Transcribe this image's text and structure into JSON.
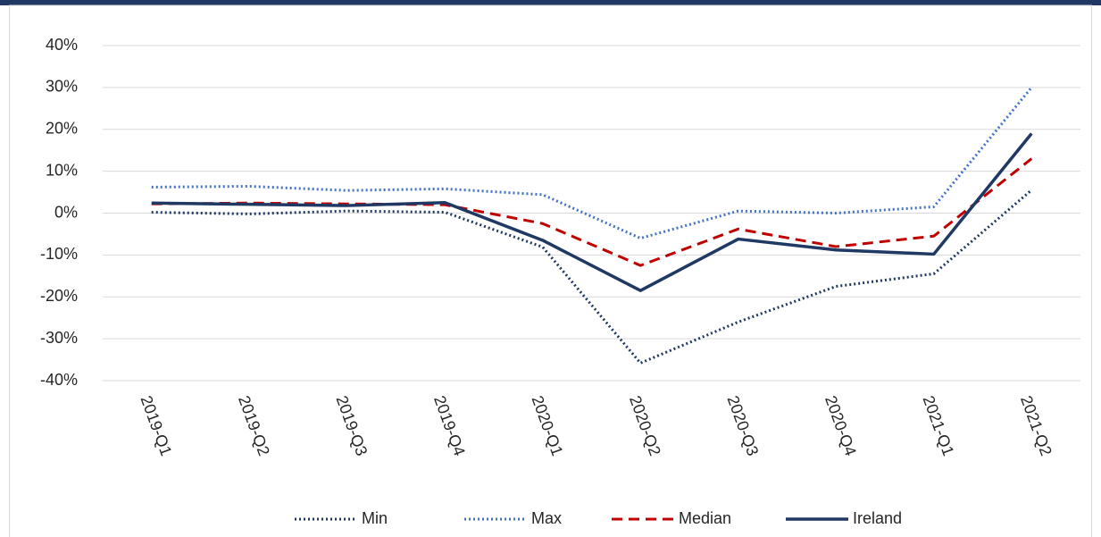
{
  "chart_data": {
    "type": "line",
    "categories": [
      "2019-Q1",
      "2019-Q2",
      "2019-Q3",
      "2019-Q4",
      "2020-Q1",
      "2020-Q2",
      "2020-Q3",
      "2020-Q4",
      "2021-Q1",
      "2021-Q2"
    ],
    "series": [
      {
        "name": "Min",
        "color": "#1f3864",
        "style": "dotted",
        "values": [
          0.2,
          -0.2,
          0.5,
          0.2,
          -8.1,
          -35.8,
          -26,
          -17.5,
          -14.5,
          5.5
        ]
      },
      {
        "name": "Max",
        "color": "#4472c4",
        "style": "dotted",
        "values": [
          6.2,
          6.4,
          5.4,
          5.8,
          4.4,
          -6,
          0.5,
          0,
          1.5,
          30
        ]
      },
      {
        "name": "Median",
        "color": "#c00000",
        "style": "dashed",
        "values": [
          2.2,
          2.4,
          2.2,
          2.0,
          -2.5,
          -12.5,
          -3.8,
          -8,
          -5.5,
          13
        ]
      },
      {
        "name": "Ireland",
        "color": "#1f3864",
        "style": "solid",
        "values": [
          2.4,
          2.1,
          1.8,
          2.5,
          -6.5,
          -18.5,
          -6.2,
          -8.8,
          -9.8,
          19
        ]
      }
    ],
    "ylim": [
      -40,
      40
    ],
    "yticks": [
      {
        "value": -40,
        "label": "-40%"
      },
      {
        "value": -30,
        "label": "-30%"
      },
      {
        "value": -20,
        "label": "-20%"
      },
      {
        "value": -10,
        "label": "-10%"
      },
      {
        "value": 0,
        "label": "0%"
      },
      {
        "value": 10,
        "label": "10%"
      },
      {
        "value": 20,
        "label": "20%"
      },
      {
        "value": 30,
        "label": "30%"
      },
      {
        "value": 40,
        "label": "40%"
      }
    ],
    "grid": true,
    "legend": "bottom"
  }
}
